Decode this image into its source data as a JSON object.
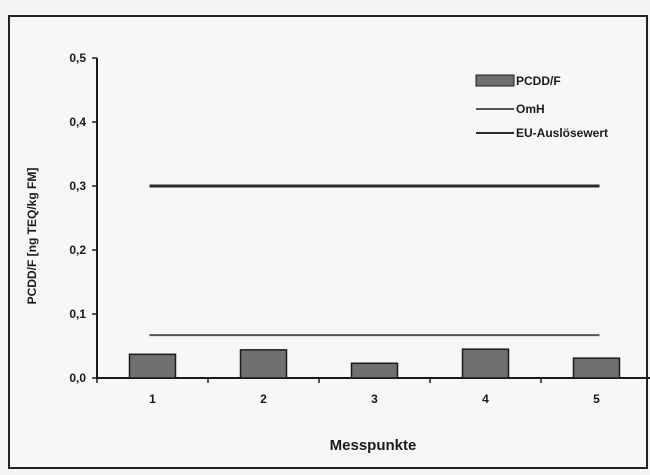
{
  "chart_data": {
    "type": "bar",
    "title": "",
    "xlabel": "Messpunkte",
    "ylabel": "PCDD/F [ng TEQ/kg FM]",
    "categories": [
      "1",
      "2",
      "3",
      "4",
      "5"
    ],
    "ylim": [
      0,
      0.5
    ],
    "yticks": [
      "0,0",
      "0,1",
      "0,2",
      "0,3",
      "0,4",
      "0,5"
    ],
    "series": [
      {
        "name": "PCDD/F",
        "type": "bar",
        "values": [
          0.037,
          0.044,
          0.023,
          0.045,
          0.031
        ],
        "color": "#707070"
      }
    ],
    "reference_lines": [
      {
        "name": "OmH",
        "value": 0.067,
        "color": "#555555"
      },
      {
        "name": "EU-Auslösewert",
        "value": 0.3,
        "color": "#2b2b2b"
      }
    ],
    "legend_position": "top-right",
    "grid": false
  }
}
